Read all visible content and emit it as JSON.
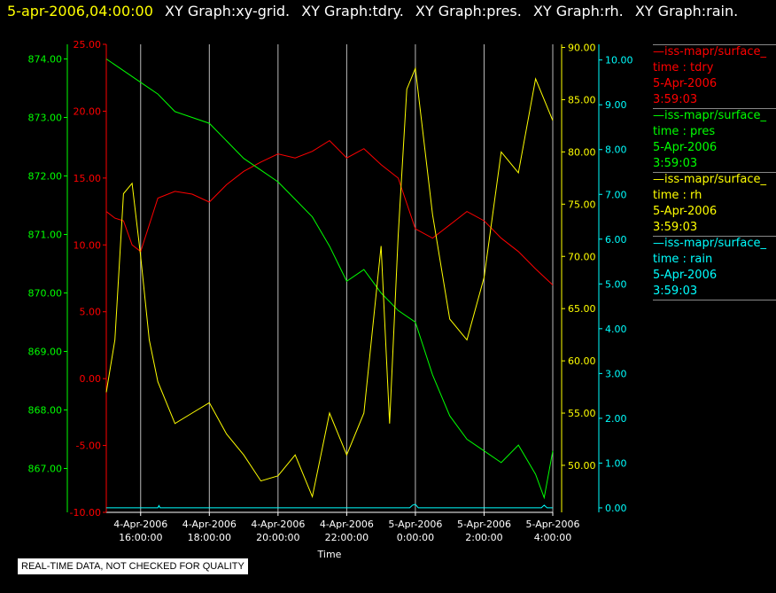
{
  "header": {
    "timestamp": "5-apr-2006,04:00:00",
    "graphs": [
      "XY Graph:xy-grid.",
      "XY Graph:tdry.",
      "XY Graph:pres.",
      "XY Graph:rh.",
      "XY Graph:rain."
    ]
  },
  "colors": {
    "tdry": "#ff0000",
    "pres": "#00ff00",
    "rh": "#ffff00",
    "rain": "#00ffff",
    "grid": "#bbbbbb",
    "axis_text": "#ffffff"
  },
  "legend": [
    {
      "source": "—iss-mapr/surface_",
      "var": "time : tdry",
      "date": "5-Apr-2006",
      "time": "3:59:03",
      "color": "#ff0000"
    },
    {
      "source": "—iss-mapr/surface_",
      "var": "time : pres",
      "date": "5-Apr-2006",
      "time": "3:59:03",
      "color": "#00ff00"
    },
    {
      "source": "—iss-mapr/surface_",
      "var": "time : rh",
      "date": "5-Apr-2006",
      "time": "3:59:03",
      "color": "#ffff00"
    },
    {
      "source": "—iss-mapr/surface_",
      "var": "time : rain",
      "date": "5-Apr-2006",
      "time": "3:59:03",
      "color": "#00ffff"
    }
  ],
  "note": "REAL-TIME DATA, NOT CHECKED FOR QUALITY",
  "chart_data": {
    "type": "line",
    "xlabel": "Time",
    "xlim": [
      "2006-04-04T15:00",
      "2006-04-05T04:00"
    ],
    "x_ticks": [
      {
        "line1": "4-Apr-2006",
        "line2": "16:00:00",
        "x": "2006-04-04T16:00"
      },
      {
        "line1": "4-Apr-2006",
        "line2": "18:00:00",
        "x": "2006-04-04T18:00"
      },
      {
        "line1": "4-Apr-2006",
        "line2": "20:00:00",
        "x": "2006-04-04T20:00"
      },
      {
        "line1": "4-Apr-2006",
        "line2": "22:00:00",
        "x": "2006-04-04T22:00"
      },
      {
        "line1": "5-Apr-2006",
        "line2": "0:00:00",
        "x": "2006-04-05T00:00"
      },
      {
        "line1": "5-Apr-2006",
        "line2": "2:00:00",
        "x": "2006-04-05T02:00"
      },
      {
        "line1": "5-Apr-2006",
        "line2": "4:00:00",
        "x": "2006-04-05T04:00"
      }
    ],
    "grid": true,
    "axes": {
      "pres": {
        "ylim": [
          866.25,
          874.25
        ],
        "ticks": [
          "867.00",
          "868.00",
          "869.00",
          "870.00",
          "871.00",
          "872.00",
          "873.00",
          "874.00"
        ]
      },
      "tdry": {
        "ylim": [
          -10,
          25
        ],
        "ticks": [
          "-10.00",
          "-5.00",
          "0.00",
          "5.00",
          "10.00",
          "15.00",
          "20.00",
          "25.00"
        ]
      },
      "rh": {
        "ylim": [
          45.5,
          90.3
        ],
        "ticks": [
          "50.00",
          "55.00",
          "60.00",
          "65.00",
          "70.00",
          "75.00",
          "80.00",
          "85.00",
          "90.00"
        ]
      },
      "rain": {
        "ylim": [
          -0.1,
          10.35
        ],
        "ticks": [
          "0.00",
          "1.00",
          "2.00",
          "3.00",
          "4.00",
          "5.00",
          "6.00",
          "7.00",
          "8.00",
          "9.00",
          "10.00"
        ]
      }
    },
    "series": [
      {
        "name": "tdry",
        "axis": "tdry",
        "x": [
          "2006-04-04T15:00",
          "2006-04-04T15:15",
          "2006-04-04T15:30",
          "2006-04-04T15:45",
          "2006-04-04T16:00",
          "2006-04-04T16:30",
          "2006-04-04T17:00",
          "2006-04-04T17:30",
          "2006-04-04T18:00",
          "2006-04-04T18:30",
          "2006-04-04T19:00",
          "2006-04-04T19:30",
          "2006-04-04T20:00",
          "2006-04-04T20:30",
          "2006-04-04T21:00",
          "2006-04-04T21:30",
          "2006-04-04T22:00",
          "2006-04-04T22:30",
          "2006-04-04T23:00",
          "2006-04-04T23:30",
          "2006-04-05T00:00",
          "2006-04-05T00:30",
          "2006-04-05T01:00",
          "2006-04-05T01:30",
          "2006-04-05T02:00",
          "2006-04-05T02:30",
          "2006-04-05T03:00",
          "2006-04-05T03:30",
          "2006-04-05T04:00"
        ],
        "y": [
          12.5,
          12.0,
          11.8,
          10.0,
          9.5,
          13.5,
          14.0,
          13.8,
          13.2,
          14.5,
          15.5,
          16.2,
          16.8,
          16.5,
          17.0,
          17.8,
          16.5,
          17.2,
          16.0,
          15.0,
          11.2,
          10.5,
          11.5,
          12.5,
          11.8,
          10.5,
          9.5,
          8.2,
          7.0
        ]
      },
      {
        "name": "pres",
        "axis": "pres",
        "x": [
          "2006-04-04T15:00",
          "2006-04-04T15:30",
          "2006-04-04T16:00",
          "2006-04-04T16:30",
          "2006-04-04T17:00",
          "2006-04-04T17:30",
          "2006-04-04T18:00",
          "2006-04-04T18:30",
          "2006-04-04T19:00",
          "2006-04-04T19:30",
          "2006-04-04T20:00",
          "2006-04-04T20:30",
          "2006-04-04T21:00",
          "2006-04-04T21:30",
          "2006-04-04T22:00",
          "2006-04-04T22:30",
          "2006-04-04T23:00",
          "2006-04-04T23:30",
          "2006-04-05T00:00",
          "2006-04-05T00:30",
          "2006-04-05T01:00",
          "2006-04-05T01:30",
          "2006-04-05T02:00",
          "2006-04-05T02:30",
          "2006-04-05T03:00",
          "2006-04-05T03:30",
          "2006-04-05T03:45",
          "2006-04-05T04:00"
        ],
        "y": [
          874.0,
          873.8,
          873.6,
          873.4,
          873.1,
          873.0,
          872.9,
          872.6,
          872.3,
          872.1,
          871.9,
          871.6,
          871.3,
          870.8,
          870.2,
          870.4,
          870.0,
          869.7,
          869.5,
          868.6,
          867.9,
          867.5,
          867.3,
          867.1,
          867.4,
          866.9,
          866.5,
          867.3
        ]
      },
      {
        "name": "rh",
        "axis": "rh",
        "x": [
          "2006-04-04T15:00",
          "2006-04-04T15:15",
          "2006-04-04T15:30",
          "2006-04-04T15:45",
          "2006-04-04T16:00",
          "2006-04-04T16:15",
          "2006-04-04T16:30",
          "2006-04-04T17:00",
          "2006-04-04T17:30",
          "2006-04-04T18:00",
          "2006-04-04T18:30",
          "2006-04-04T19:00",
          "2006-04-04T19:30",
          "2006-04-04T20:00",
          "2006-04-04T20:30",
          "2006-04-04T21:00",
          "2006-04-04T21:30",
          "2006-04-04T22:00",
          "2006-04-04T22:30",
          "2006-04-04T23:00",
          "2006-04-04T23:15",
          "2006-04-04T23:30",
          "2006-04-04T23:45",
          "2006-04-05T00:00",
          "2006-04-05T00:30",
          "2006-04-05T01:00",
          "2006-04-05T01:30",
          "2006-04-05T02:00",
          "2006-04-05T02:30",
          "2006-04-05T03:00",
          "2006-04-05T03:30",
          "2006-04-05T04:00"
        ],
        "y": [
          57.0,
          62.0,
          76.0,
          77.0,
          70.0,
          62.0,
          58.0,
          54.0,
          55.0,
          56.0,
          53.0,
          51.0,
          48.5,
          49.0,
          51.0,
          47.0,
          55.0,
          51.0,
          55.0,
          71.0,
          54.0,
          72.0,
          86.0,
          88.0,
          74.0,
          64.0,
          62.0,
          68.0,
          80.0,
          78.0,
          87.0,
          83.0
        ]
      },
      {
        "name": "rain",
        "axis": "rain",
        "x": [
          "2006-04-04T15:00",
          "2006-04-04T16:30",
          "2006-04-04T16:32",
          "2006-04-04T16:34",
          "2006-04-04T23:50",
          "2006-04-04T23:55",
          "2006-04-05T00:00",
          "2006-04-05T00:05",
          "2006-04-05T03:40",
          "2006-04-05T03:45",
          "2006-04-05T03:50",
          "2006-04-05T04:00"
        ],
        "y": [
          0.0,
          0.0,
          0.05,
          0.0,
          0.0,
          0.06,
          0.08,
          0.0,
          0.0,
          0.06,
          0.0,
          0.0
        ]
      }
    ]
  }
}
